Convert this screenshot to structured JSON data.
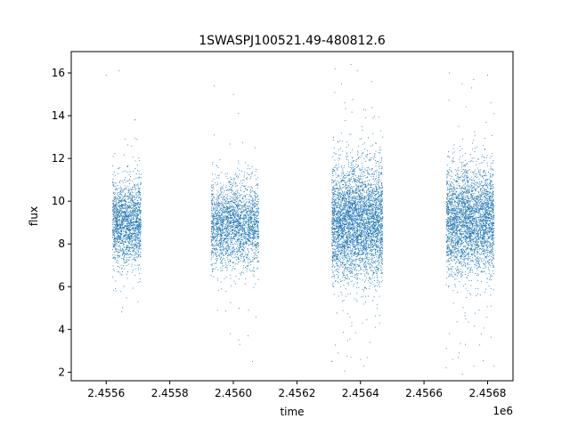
{
  "chart_data": {
    "type": "scatter",
    "title": "1SWASPJ100521.49-480812.6",
    "xlabel": "time",
    "ylabel": "flux",
    "x_offset_label": "1e6",
    "xlim": [
      2.45549,
      2.45688
    ],
    "ylim": [
      1.6,
      17.0
    ],
    "x_ticks": [
      2.4556,
      2.4558,
      2.456,
      2.4562,
      2.4564,
      2.4566,
      2.4568
    ],
    "x_tick_labels": [
      "2.4556",
      "2.4558",
      "2.4560",
      "2.4562",
      "2.4564",
      "2.4566",
      "2.4568"
    ],
    "y_ticks": [
      2,
      4,
      6,
      8,
      10,
      12,
      14,
      16
    ],
    "y_tick_labels": [
      "2",
      "4",
      "6",
      "8",
      "10",
      "12",
      "14",
      "16"
    ],
    "grid": false,
    "legend": "none",
    "marker_color": "#1f77b4",
    "series": [
      {
        "segments": [
          {
            "x_start": 2.45562,
            "x_end": 2.45571,
            "y_mean": 9.0,
            "y_spread": 0.95,
            "n": 1800
          },
          {
            "x_start": 2.45593,
            "x_end": 2.45608,
            "y_mean": 8.9,
            "y_spread": 0.95,
            "n": 2400
          },
          {
            "x_start": 2.45631,
            "x_end": 2.45647,
            "y_mean": 9.0,
            "y_spread": 1.3,
            "n": 4200
          },
          {
            "x_start": 2.45667,
            "x_end": 2.45682,
            "y_mean": 9.1,
            "y_spread": 1.2,
            "n": 3400
          }
        ],
        "outliers": [
          [
            2.4556,
            15.9
          ],
          [
            2.45564,
            16.1
          ],
          [
            2.45569,
            13.8
          ],
          [
            2.45566,
            12.9
          ],
          [
            2.4557,
            5.3
          ],
          [
            2.45563,
            5.8
          ],
          [
            2.45594,
            15.4
          ],
          [
            2.45594,
            13.1
          ],
          [
            2.456,
            15.0
          ],
          [
            2.45595,
            4.9
          ],
          [
            2.45599,
            3.8
          ],
          [
            2.45606,
            2.5
          ],
          [
            2.45602,
            3.3
          ],
          [
            2.45632,
            16.2
          ],
          [
            2.45634,
            15.5
          ],
          [
            2.45637,
            16.4
          ],
          [
            2.45639,
            16.1
          ],
          [
            2.45635,
            14.6
          ],
          [
            2.45641,
            14.3
          ],
          [
            2.45644,
            13.9
          ],
          [
            2.45647,
            13.0
          ],
          [
            2.45631,
            2.5
          ],
          [
            2.45633,
            2.9
          ],
          [
            2.45637,
            2.7
          ],
          [
            2.4564,
            2.6
          ],
          [
            2.45641,
            2.3
          ],
          [
            2.45643,
            3.4
          ],
          [
            2.45646,
            4.3
          ],
          [
            2.45668,
            16.0
          ],
          [
            2.45672,
            15.5
          ],
          [
            2.45675,
            15.3
          ],
          [
            2.4568,
            15.9
          ],
          [
            2.45681,
            14.6
          ],
          [
            2.45682,
            14.1
          ],
          [
            2.45667,
            2.2
          ],
          [
            2.45669,
            2.6
          ],
          [
            2.45673,
            3.3
          ],
          [
            2.45678,
            3.8
          ],
          [
            2.45682,
            2.3
          ],
          [
            2.45671,
            2.9
          ]
        ]
      }
    ]
  }
}
